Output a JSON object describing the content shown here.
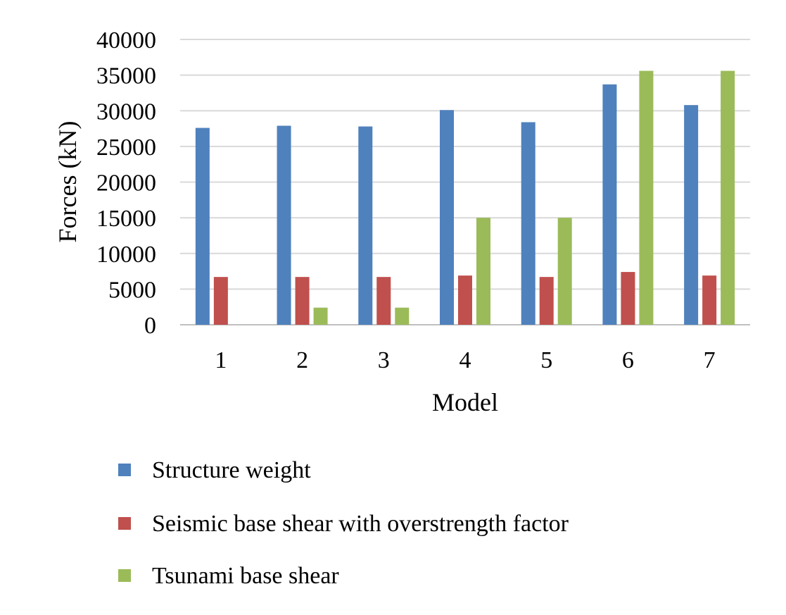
{
  "chart_data": {
    "type": "bar",
    "title": "",
    "xlabel": "Model",
    "ylabel": "Forces (kN)",
    "ylim": [
      0,
      40000
    ],
    "yticks": [
      0,
      5000,
      10000,
      15000,
      20000,
      25000,
      30000,
      35000,
      40000
    ],
    "categories": [
      "1",
      "2",
      "3",
      "4",
      "5",
      "6",
      "7"
    ],
    "grid": true,
    "legend_position": "bottom",
    "series": [
      {
        "name": "Structure weight",
        "color": "#4F81BD",
        "values": [
          27600,
          27900,
          27800,
          30100,
          28400,
          33700,
          30800
        ]
      },
      {
        "name": "Seismic base shear with overstrength factor",
        "color": "#C0504D",
        "values": [
          6700,
          6700,
          6700,
          6900,
          6700,
          7400,
          6900
        ]
      },
      {
        "name": "Tsunami base shear",
        "color": "#9BBB59",
        "values": [
          0,
          2400,
          2400,
          15000,
          15000,
          35600,
          35600
        ]
      }
    ]
  }
}
